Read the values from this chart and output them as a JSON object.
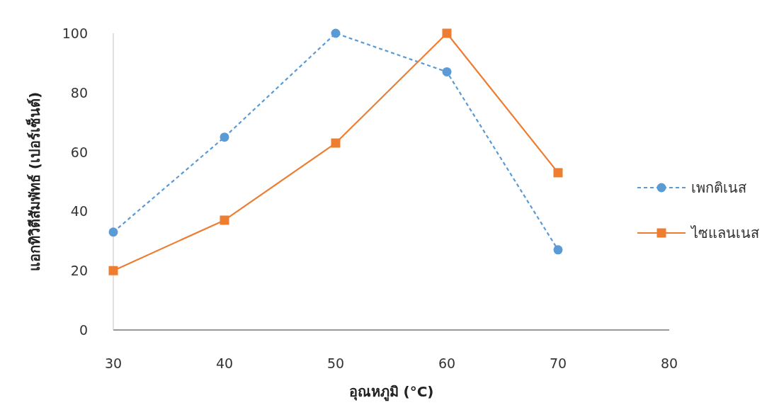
{
  "chart_data": {
    "type": "line",
    "xlabel": "อุณหภูมิ (°C)",
    "ylabel": "แอกทิวิตีสัมพัทธ์ (เปอร์เซ็นต์)",
    "x": [
      30,
      40,
      50,
      60,
      70
    ],
    "series": [
      {
        "name": "เพกติเนส",
        "color": "#5b9bd5",
        "marker": "circle",
        "line_style": "dashed",
        "values": [
          33,
          65,
          100,
          87,
          27
        ]
      },
      {
        "name": "ไซแลนเนส",
        "color": "#ed7d31",
        "marker": "square",
        "line_style": "solid",
        "values": [
          20,
          37,
          63,
          100,
          53
        ]
      }
    ],
    "xlim": [
      30,
      80
    ],
    "xticks": [
      30,
      40,
      50,
      60,
      70,
      80
    ],
    "ylim": [
      0,
      100
    ],
    "yticks": [
      0,
      20,
      40,
      60,
      80,
      100
    ],
    "grid": false,
    "legend": "right"
  }
}
